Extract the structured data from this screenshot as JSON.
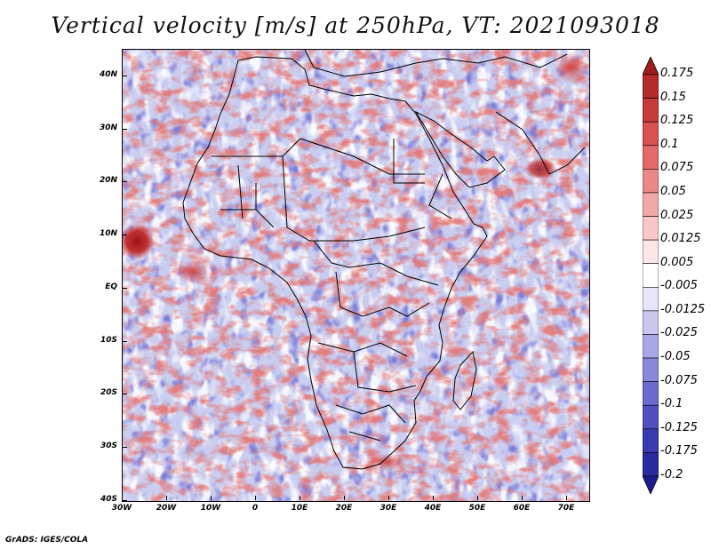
{
  "title": "Vertical velocity [m/s] at 250hPa, VT: 2021093018",
  "footer": "GrADS: IGES/COLA",
  "map": {
    "lon_range": [
      -30,
      75
    ],
    "lat_range": [
      -40,
      45
    ],
    "x_ticks": [
      "30W",
      "20W",
      "10W",
      "0",
      "10E",
      "20E",
      "30E",
      "40E",
      "50E",
      "60E",
      "70E"
    ],
    "y_ticks": [
      "40N",
      "30N",
      "20N",
      "10N",
      "EQ",
      "10S",
      "20S",
      "30S",
      "40S"
    ],
    "x_tick_values": [
      -30,
      -20,
      -10,
      0,
      10,
      20,
      30,
      40,
      50,
      60,
      70
    ],
    "y_tick_values": [
      40,
      30,
      20,
      10,
      0,
      -10,
      -20,
      -30,
      -40
    ]
  },
  "colorbar": {
    "labels": [
      "0.175",
      "0.15",
      "0.125",
      "0.1",
      "0.075",
      "0.05",
      "0.025",
      "0.0125",
      "0.005",
      "-0.005",
      "-0.0125",
      "-0.025",
      "-0.05",
      "-0.075",
      "-0.1",
      "-0.125",
      "-0.175",
      "-0.2"
    ],
    "colors": [
      "#a01c1c",
      "#b52a2a",
      "#c83a3a",
      "#d85050",
      "#e46a6a",
      "#ec8888",
      "#f3a8a8",
      "#f8c8c8",
      "#fce6e6",
      "#ffffff",
      "#e6e6f8",
      "#c8c8f0",
      "#a8a8e8",
      "#8888dc",
      "#6a6ad0",
      "#5050c0",
      "#3a3ab0",
      "#2a2aa0",
      "#1c1c90"
    ]
  }
}
